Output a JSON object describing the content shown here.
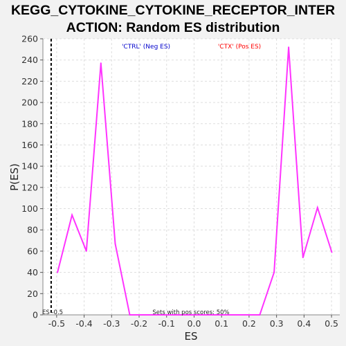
{
  "chart_data": {
    "type": "line",
    "title_lines": [
      "KEGG_CYTOKINE_CYTOKINE_RECEPTOR_INTER",
      "ACTION: Random ES distribution"
    ],
    "xlabel": "ES",
    "ylabel": "P(ES)",
    "xlim": [
      -0.55,
      0.53
    ],
    "ylim": [
      0,
      260
    ],
    "x_ticks": [
      -0.5,
      -0.4,
      -0.3,
      -0.2,
      -0.1,
      0.0,
      0.1,
      0.2,
      0.3,
      0.4,
      0.5
    ],
    "x_tick_labels": [
      "-0.5",
      "-0.4",
      "-0.3",
      "-0.2",
      "-0.1",
      "0.0",
      "0.1",
      "0.2",
      "0.3",
      "0.4",
      "0.5"
    ],
    "y_ticks": [
      0,
      20,
      40,
      60,
      80,
      100,
      120,
      140,
      160,
      180,
      200,
      220,
      240,
      260
    ],
    "y_tick_labels": [
      "0",
      "20",
      "40",
      "60",
      "80",
      "100",
      "120",
      "140",
      "160",
      "180",
      "200",
      "220",
      "240",
      "260"
    ],
    "grid": true,
    "legend": [
      {
        "label": "'CTRL' (Neg ES)",
        "color": "#0000cc"
      },
      {
        "label": "'CTX' (Pos ES)",
        "color": "#ff0000"
      }
    ],
    "series": [
      {
        "color": "#ff33ff",
        "x": [
          -0.497,
          -0.444,
          -0.392,
          -0.339,
          -0.287,
          -0.234,
          -0.182,
          -0.129,
          -0.076,
          -0.024,
          0.029,
          0.081,
          0.134,
          0.186,
          0.239,
          0.291,
          0.344,
          0.396,
          0.449,
          0.501
        ],
        "y": [
          40,
          94,
          60,
          237,
          67,
          0,
          0,
          0,
          0,
          0,
          0,
          0,
          0,
          0,
          0,
          40,
          252,
          54,
          101,
          59
        ]
      }
    ],
    "marker_line": {
      "x": -0.52,
      "label": "ES -0.5"
    },
    "annotation": "Sets with pos scores: 50%"
  }
}
